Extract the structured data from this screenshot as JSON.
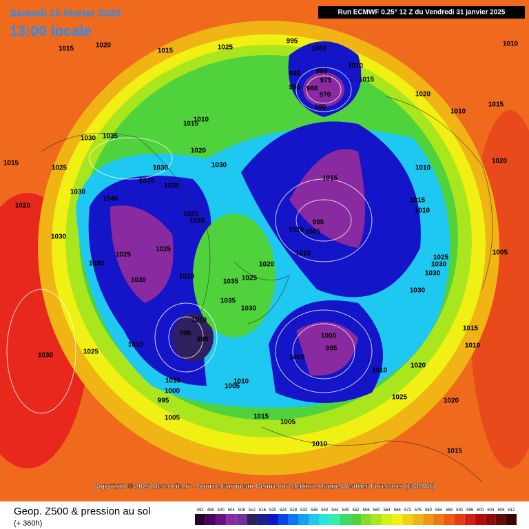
{
  "header": {
    "date": "Samedi 15 février 2025",
    "time": "13:00 locale",
    "run": "Run ECMWF 0.25° 12 Z du Vendredi 31 janvier 2025"
  },
  "copyright": "Copyright © 2025 Meteociel.fr - Source European Centre for Medium-Range Weather Forecasts (ECMWF)",
  "footer": {
    "title": "Geop. Z500 & pression au sol",
    "lead": "(+ 360h)"
  },
  "colorbar": {
    "labels": [
      492,
      496,
      500,
      504,
      508,
      512,
      516,
      520,
      524,
      528,
      532,
      536,
      540,
      544,
      548,
      552,
      556,
      560,
      564,
      568,
      572,
      576,
      580,
      584,
      588,
      592,
      596,
      600,
      604,
      608,
      612
    ],
    "colors": [
      "#2a0030",
      "#4a0060",
      "#6a1080",
      "#8a2aa0",
      "#7030a0",
      "#302060",
      "#1e1e8c",
      "#1414c8",
      "#0a46e6",
      "#0a78f0",
      "#14a0f0",
      "#1ec8f0",
      "#28e6dc",
      "#32f0aa",
      "#3cdc64",
      "#50d23c",
      "#82dc28",
      "#aae61e",
      "#d2f014",
      "#f0f014",
      "#f0d214",
      "#f0b414",
      "#f09614",
      "#f07814",
      "#f05a14",
      "#e63c14",
      "#d21e14",
      "#b40a0a",
      "#8c0a0a",
      "#640a0a",
      "#3c0505"
    ]
  },
  "isobar_labels": [
    1015,
    1020,
    1015,
    1025,
    995,
    1000,
    990,
    985,
    975,
    980,
    970,
    990,
    995,
    1010,
    1015,
    1020,
    1010,
    1015,
    1010,
    1015,
    1030,
    1035,
    1025,
    1030,
    1020,
    1030,
    1040,
    1025,
    1030,
    1020,
    1025,
    1020,
    1025,
    1030,
    1035,
    1035,
    1020,
    1015,
    1010,
    1015,
    995,
    1005,
    1010,
    1015,
    1010,
    1015,
    1010,
    1020,
    1025,
    1030,
    1030,
    1000,
    995,
    1005,
    1010,
    1020,
    1025,
    1020,
    1015,
    1010,
    1005,
    1015,
    1005,
    995,
    1000,
    1010,
    1005,
    1010,
    990,
    995,
    1010,
    1010,
    1025,
    1030,
    1030,
    1030,
    1035,
    1035,
    1025,
    1020,
    1030,
    1030,
    1010,
    1015,
    1005
  ]
}
